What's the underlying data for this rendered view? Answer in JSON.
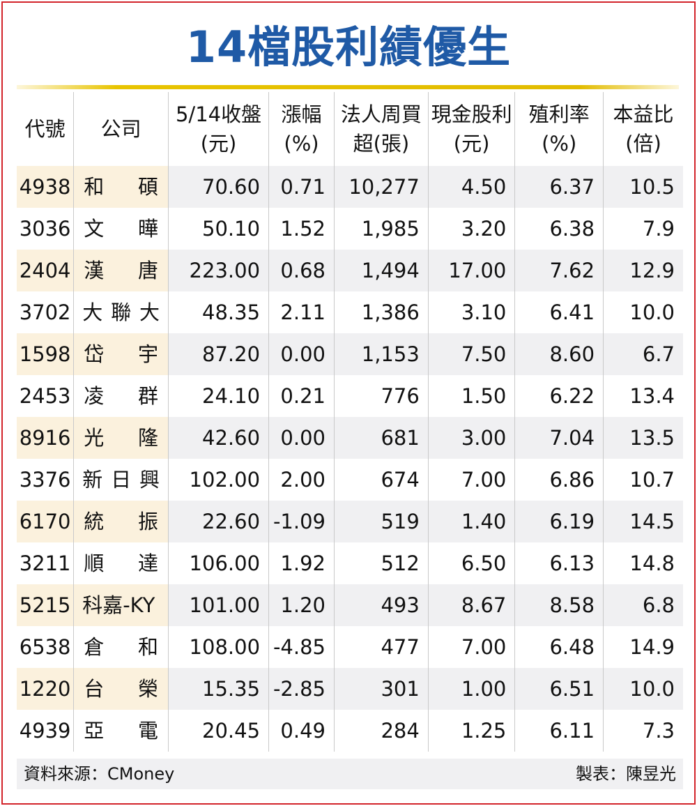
{
  "title": "14檔股利績優生",
  "header": {
    "code": "代號",
    "company": "公司",
    "close_l1": "5/14收盤",
    "close_l2": "(元)",
    "change_l1": "漲幅",
    "change_l2": "(%)",
    "inst_l1": "法人周買",
    "inst_l2": "超(張)",
    "cash_l1": "現金股利",
    "cash_l2": "(元)",
    "yield_l1": "殖利率",
    "yield_l2": "(%)",
    "pe_l1": "本益比",
    "pe_l2": "(倍)"
  },
  "rows": [
    {
      "code": "4938",
      "name": [
        "和",
        "碩"
      ],
      "close": "70.60",
      "change": "0.71",
      "inst": "10,277",
      "cash": "4.50",
      "yield": "6.37",
      "pe": "10.5"
    },
    {
      "code": "3036",
      "name": [
        "文",
        "曄"
      ],
      "close": "50.10",
      "change": "1.52",
      "inst": "1,985",
      "cash": "3.20",
      "yield": "6.38",
      "pe": "7.9"
    },
    {
      "code": "2404",
      "name": [
        "漢",
        "唐"
      ],
      "close": "223.00",
      "change": "0.68",
      "inst": "1,494",
      "cash": "17.00",
      "yield": "7.62",
      "pe": "12.9"
    },
    {
      "code": "3702",
      "name": [
        "大",
        "聯",
        "大"
      ],
      "close": "48.35",
      "change": "2.11",
      "inst": "1,386",
      "cash": "3.10",
      "yield": "6.41",
      "pe": "10.0"
    },
    {
      "code": "1598",
      "name": [
        "岱",
        "宇"
      ],
      "close": "87.20",
      "change": "0.00",
      "inst": "1,153",
      "cash": "7.50",
      "yield": "8.60",
      "pe": "6.7"
    },
    {
      "code": "2453",
      "name": [
        "凌",
        "群"
      ],
      "close": "24.10",
      "change": "0.21",
      "inst": "776",
      "cash": "1.50",
      "yield": "6.22",
      "pe": "13.4"
    },
    {
      "code": "8916",
      "name": [
        "光",
        "隆"
      ],
      "close": "42.60",
      "change": "0.00",
      "inst": "681",
      "cash": "3.00",
      "yield": "7.04",
      "pe": "13.5"
    },
    {
      "code": "3376",
      "name": [
        "新",
        "日",
        "興"
      ],
      "close": "102.00",
      "change": "2.00",
      "inst": "674",
      "cash": "7.00",
      "yield": "6.86",
      "pe": "10.7"
    },
    {
      "code": "6170",
      "name": [
        "統",
        "振"
      ],
      "close": "22.60",
      "change": "-1.09",
      "inst": "519",
      "cash": "1.40",
      "yield": "6.19",
      "pe": "14.5"
    },
    {
      "code": "3211",
      "name": [
        "順",
        "達"
      ],
      "close": "106.00",
      "change": "1.92",
      "inst": "512",
      "cash": "6.50",
      "yield": "6.13",
      "pe": "14.8"
    },
    {
      "code": "5215",
      "name": [
        "科嘉-KY"
      ],
      "close": "101.00",
      "change": "1.20",
      "inst": "493",
      "cash": "8.67",
      "yield": "8.58",
      "pe": "6.8"
    },
    {
      "code": "6538",
      "name": [
        "倉",
        "和"
      ],
      "close": "108.00",
      "change": "-4.85",
      "inst": "477",
      "cash": "7.00",
      "yield": "6.48",
      "pe": "14.9"
    },
    {
      "code": "1220",
      "name": [
        "台",
        "榮"
      ],
      "close": "15.35",
      "change": "-2.85",
      "inst": "301",
      "cash": "1.00",
      "yield": "6.51",
      "pe": "10.0"
    },
    {
      "code": "4939",
      "name": [
        "亞",
        "電"
      ],
      "close": "20.45",
      "change": "0.49",
      "inst": "284",
      "cash": "1.25",
      "yield": "6.11",
      "pe": "7.3"
    }
  ],
  "footer": {
    "source": "資料來源：CMoney",
    "maker": "製表：陳昱光"
  },
  "colors": {
    "title": "#1f5aa6",
    "border": "#d2232a",
    "rule": "#e2bc00",
    "stripe": "#f0f0f2",
    "stripe_left": "#fbf1dd"
  }
}
